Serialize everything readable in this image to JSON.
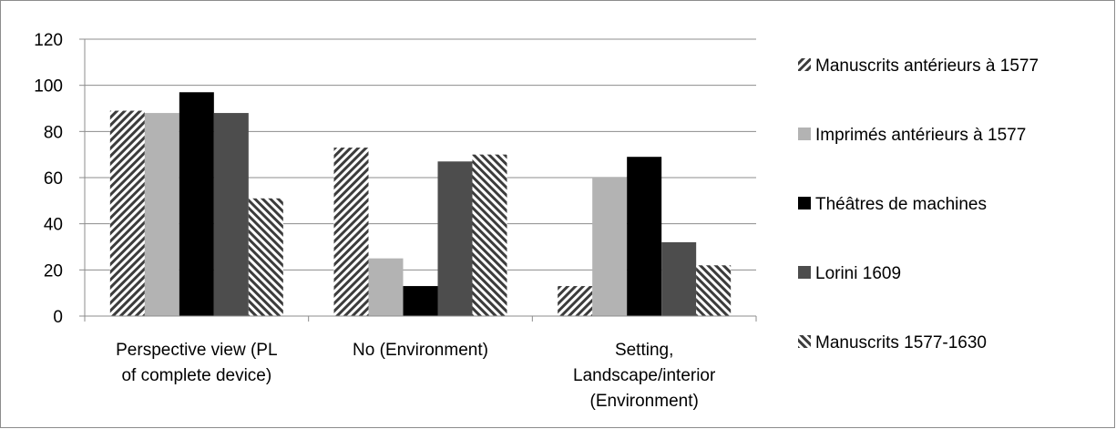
{
  "chart_data": {
    "type": "bar",
    "title": "",
    "xlabel": "",
    "ylabel": "",
    "ylim": [
      0,
      120
    ],
    "yticks": [
      0,
      20,
      40,
      60,
      80,
      100,
      120
    ],
    "grid": true,
    "legend_position": "right",
    "categories": [
      [
        "Perspective view (PL",
        "of complete device)"
      ],
      [
        "No (Environment)"
      ],
      [
        "Setting,",
        "Landscape/interior",
        "(Environment)"
      ]
    ],
    "series": [
      {
        "name": "Manuscrits antérieurs à 1577",
        "values": [
          89,
          73,
          13
        ],
        "fill": "hatch-fwd"
      },
      {
        "name": "Imprimés antérieurs à 1577",
        "values": [
          88,
          25,
          60
        ],
        "fill": "#b3b3b3"
      },
      {
        "name": "Théâtres de machines",
        "values": [
          97,
          13,
          69
        ],
        "fill": "#000000"
      },
      {
        "name": "Lorini 1609",
        "values": [
          88,
          67,
          32
        ],
        "fill": "#4d4d4d"
      },
      {
        "name": "Manuscrits 1577-1630",
        "values": [
          51,
          70,
          22
        ],
        "fill": "hatch-back"
      }
    ]
  }
}
